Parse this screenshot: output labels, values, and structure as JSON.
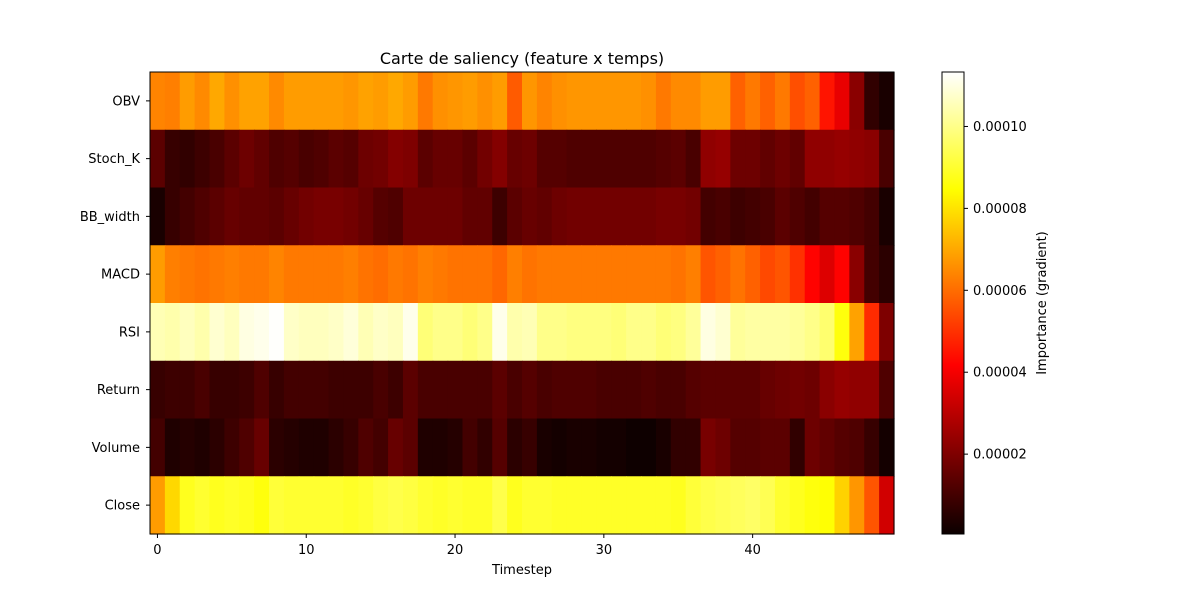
{
  "chart_data": {
    "type": "heatmap",
    "title": "Carte de saliency (feature x temps)",
    "xlabel": "Timestep",
    "ylabel": "",
    "x_ticks": [
      0,
      10,
      20,
      30,
      40
    ],
    "x_range": [
      0,
      49
    ],
    "features": [
      "OBV",
      "Stoch_K",
      "BB_width",
      "MACD",
      "RSI",
      "Return",
      "Volume",
      "Close"
    ],
    "colormap": "hot",
    "colorbar": {
      "label": "Importance (gradient)",
      "range": [
        5e-07,
        0.0001133
      ],
      "ticks": [
        2e-05,
        4e-05,
        6e-05,
        8e-05,
        0.0001
      ],
      "tick_labels": [
        "0.00002",
        "0.00004",
        "0.00006",
        "0.00008",
        "0.00010"
      ]
    },
    "values": [
      [
        6.4e-05,
        6.3e-05,
        6.8e-05,
        6.5e-05,
        7e-05,
        6.6e-05,
        6.9e-05,
        6.9e-05,
        6.5e-05,
        6.8e-05,
        6.8e-05,
        6.8e-05,
        6.8e-05,
        6.7e-05,
        6.9e-05,
        6.8e-05,
        7e-05,
        6.8e-05,
        6.2e-05,
        6.6e-05,
        6.7e-05,
        6.8e-05,
        6.6e-05,
        6.8e-05,
        5.7e-05,
        6.7e-05,
        6.4e-05,
        6.6e-05,
        6.7e-05,
        6.7e-05,
        6.7e-05,
        6.7e-05,
        6.7e-05,
        6.6e-05,
        6.2e-05,
        6.5e-05,
        6.5e-05,
        6.8e-05,
        6.8e-05,
        5.8e-05,
        6.2e-05,
        5.8e-05,
        6.2e-05,
        5.5e-05,
        5.8e-05,
        4.5e-05,
        3.8e-05,
        2.2e-05,
        7e-06,
        3e-06
      ],
      [
        1.4e-05,
        8e-06,
        7e-06,
        9e-06,
        1.1e-05,
        1.4e-05,
        1.7e-05,
        1.5e-05,
        1.2e-05,
        1.3e-05,
        1.1e-05,
        1.2e-05,
        1.4e-05,
        1.3e-05,
        1.7e-05,
        1.8e-05,
        2.1e-05,
        2e-05,
        1.4e-05,
        1.6e-05,
        1.6e-05,
        1.4e-05,
        1.8e-05,
        2.1e-05,
        1.6e-05,
        1.7e-05,
        1.3e-05,
        1.3e-05,
        1.2e-05,
        1.2e-05,
        1.2e-05,
        1.2e-05,
        1.2e-05,
        1.2e-05,
        1.3e-05,
        1.4e-05,
        1.1e-05,
        2.3e-05,
        2.4e-05,
        1.7e-05,
        1.7e-05,
        1.5e-05,
        1.7e-05,
        1.5e-05,
        2.3e-05,
        2.3e-05,
        2.4e-05,
        2.3e-05,
        2.2e-05,
        1.1e-05
      ],
      [
        3e-06,
        8e-06,
        1e-05,
        1.2e-05,
        1.4e-05,
        1.6e-05,
        1.5e-05,
        1.5e-05,
        1.4e-05,
        1.6e-05,
        1.8e-05,
        1.9e-05,
        1.9e-05,
        1.8e-05,
        1.6e-05,
        1.3e-05,
        1.2e-05,
        1.7e-05,
        1.7e-05,
        1.7e-05,
        1.7e-05,
        1.5e-05,
        1.5e-05,
        9e-06,
        1.4e-05,
        1.6e-05,
        1.5e-05,
        1.7e-05,
        1.8e-05,
        1.8e-05,
        1.8e-05,
        1.8e-05,
        1.8e-05,
        1.8e-05,
        1.9e-05,
        1.9e-05,
        1.8e-05,
        1e-05,
        1.1e-05,
        9e-06,
        1e-05,
        1.1e-05,
        1.4e-05,
        1.2e-05,
        1e-05,
        1.3e-05,
        1.3e-05,
        1.2e-05,
        1e-05,
        3e-06
      ],
      [
        6.8e-05,
        6.3e-05,
        6.2e-05,
        6.1e-05,
        6.2e-05,
        6.3e-05,
        6.2e-05,
        6.2e-05,
        6.4e-05,
        6.2e-05,
        6.2e-05,
        6.2e-05,
        6.2e-05,
        6.3e-05,
        6.1e-05,
        6e-05,
        6.2e-05,
        6.1e-05,
        6.3e-05,
        6.2e-05,
        6.1e-05,
        6.1e-05,
        6.1e-05,
        5.9e-05,
        6.3e-05,
        6.1e-05,
        6.2e-05,
        6.2e-05,
        6.2e-05,
        6.2e-05,
        6.2e-05,
        6.2e-05,
        6.2e-05,
        6.2e-05,
        6.2e-05,
        6.1e-05,
        6.3e-05,
        5.6e-05,
        5.8e-05,
        6.1e-05,
        5.8e-05,
        5.4e-05,
        5.6e-05,
        5e-05,
        4.2e-05,
        3.6e-05,
        4.2e-05,
        2.2e-05,
        1e-05,
        6e-06
      ],
      [
        0.000105,
        0.000104,
        0.000106,
        0.000104,
        0.000108,
        0.000106,
        0.00011,
        0.000111,
        0.000113,
        0.000107,
        0.000106,
        0.000106,
        0.000107,
        0.000109,
        0.000105,
        0.000107,
        0.000106,
        0.000111,
        9.8e-05,
        0.0001,
        0.0001,
        9.8e-05,
        0.0001,
        0.000111,
        0.000104,
        0.000105,
        0.0001,
        0.0001,
        9.9e-05,
        9.9e-05,
        9.9e-05,
        9.8e-05,
        0.0001,
        0.0001,
        9.8e-05,
        9.9e-05,
        0.000102,
        0.00011,
        0.000108,
        0.000102,
        0.000103,
        0.000103,
        0.000103,
        0.000102,
        0.0001,
        9.7e-05,
        8.6e-05,
        6.9e-05,
        4.9e-05,
        2e-05
      ],
      [
        8e-06,
        9e-06,
        9e-06,
        1.1e-05,
        8e-06,
        8e-06,
        9e-06,
        1.2e-05,
        8e-06,
        1e-05,
        1e-05,
        1e-05,
        9e-06,
        9e-06,
        9e-06,
        1.1e-05,
        9e-06,
        1.4e-05,
        1.1e-05,
        1.1e-05,
        1.1e-05,
        1.1e-05,
        1.1e-05,
        1.4e-05,
        1.1e-05,
        1.3e-05,
        1.1e-05,
        1.2e-05,
        1.2e-05,
        1.2e-05,
        1.1e-05,
        1.1e-05,
        1.1e-05,
        1.2e-05,
        1.1e-05,
        1.1e-05,
        1.3e-05,
        1.4e-05,
        1.4e-05,
        1.4e-05,
        1.4e-05,
        1.6e-05,
        1.7e-05,
        1.8e-05,
        1.7e-05,
        2.2e-05,
        2.4e-05,
        2.3e-05,
        2.3e-05,
        1.2e-05
      ],
      [
        1e-05,
        4e-06,
        5e-06,
        4e-06,
        6e-06,
        9e-06,
        1.2e-05,
        1.6e-05,
        6e-06,
        5e-06,
        4e-06,
        4e-06,
        6e-06,
        8e-06,
        1.2e-05,
        1e-05,
        1.6e-05,
        1.4e-05,
        4e-06,
        4e-06,
        5e-06,
        1e-05,
        7e-06,
        1.3e-05,
        6e-06,
        8e-06,
        3e-06,
        2e-06,
        3e-06,
        3e-06,
        2e-06,
        2e-06,
        1e-06,
        1e-06,
        3e-06,
        7e-06,
        7e-06,
        1.9e-05,
        1.7e-05,
        1.3e-05,
        1.3e-05,
        1.4e-05,
        1.4e-05,
        7e-06,
        1.7e-05,
        1.5e-05,
        1.3e-05,
        1.2e-05,
        8e-06,
        2e-06
      ],
      [
        6.8e-05,
        7.8e-05,
        8.8e-05,
        9e-05,
        8.8e-05,
        8.9e-05,
        8.8e-05,
        8.6e-05,
        9.1e-05,
        9e-05,
        9e-05,
        9e-05,
        9e-05,
        8.9e-05,
        9e-05,
        9.2e-05,
        9.3e-05,
        9.2e-05,
        9e-05,
        8.9e-05,
        9e-05,
        8.9e-05,
        8.9e-05,
        9.3e-05,
        8.8e-05,
        9e-05,
        9e-05,
        8.9e-05,
        8.9e-05,
        8.9e-05,
        8.9e-05,
        8.9e-05,
        8.9e-05,
        8.9e-05,
        8.9e-05,
        8.8e-05,
        9.1e-05,
        9.3e-05,
        9.4e-05,
        9.5e-05,
        9.6e-05,
        9.4e-05,
        9e-05,
        8.8e-05,
        8.6e-05,
        8.5e-05,
        7.7e-05,
        6.7e-05,
        5.6e-05,
        3.4e-05
      ]
    ]
  }
}
